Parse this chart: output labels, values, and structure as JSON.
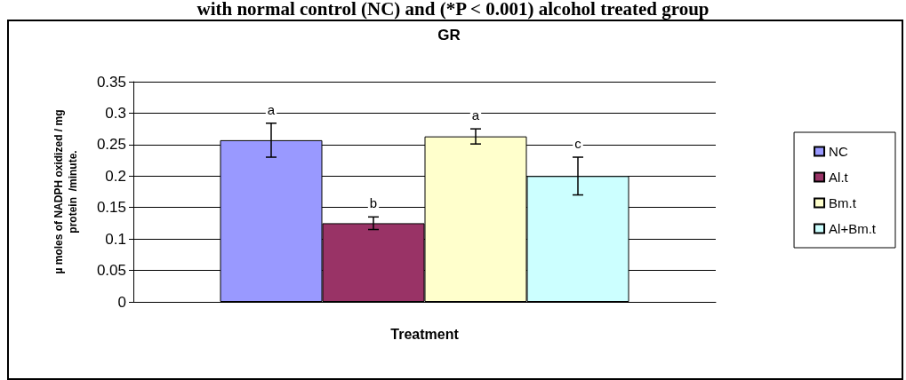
{
  "chart_data": {
    "type": "bar",
    "title": "GR",
    "subtitle": "with normal control (NC) and (*P < 0.001) alcohol treated group",
    "xlabel": "Treatment",
    "ylabel": "µ moles of NADPH oxidized / mg\nprotein  /minute.",
    "categories": [
      null
    ],
    "series": [
      {
        "name": "NC",
        "color": "#9999ff",
        "values": [
          0.257
        ],
        "errors": [
          0.027
        ]
      },
      {
        "name": "Al.t",
        "color": "#993366",
        "values": [
          0.125
        ],
        "errors": [
          0.01
        ]
      },
      {
        "name": "Bm.t",
        "color": "#ffffcc",
        "values": [
          0.263
        ],
        "errors": [
          0.012
        ]
      },
      {
        "name": "Al+Bm.t",
        "color": "#ccffff",
        "values": [
          0.2
        ],
        "errors": [
          0.03
        ]
      }
    ],
    "annotations": [
      "a",
      "b",
      "a",
      "c"
    ],
    "ylim": [
      0,
      0.35
    ],
    "yticks": [
      0,
      0.05,
      0.1,
      0.15,
      0.2,
      0.25,
      0.3,
      0.35
    ],
    "grid": "y",
    "legend": "right"
  }
}
